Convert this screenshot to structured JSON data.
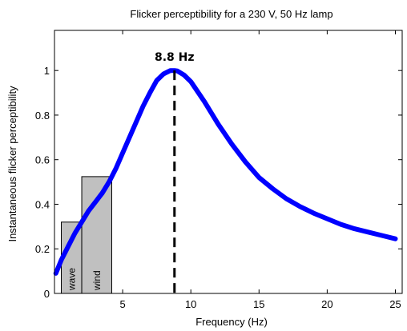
{
  "chart_data": {
    "type": "line",
    "title": "Flicker perceptibility for a 230 V, 50 Hz lamp",
    "xlabel": "Frequency (Hz)",
    "ylabel": "Instantaneous flicker perceptibility",
    "xlim": [
      0,
      25.5
    ],
    "ylim": [
      0,
      1.18
    ],
    "xticks": [
      5,
      10,
      15,
      20,
      25
    ],
    "xtick_labels": [
      "5",
      "10",
      "15",
      "20",
      "25"
    ],
    "yticks": [
      0,
      0.2,
      0.4,
      0.6,
      0.8,
      1
    ],
    "ytick_labels": [
      "0",
      "0.2",
      "0.4",
      "0.6",
      "0.8",
      "1"
    ],
    "grid": false,
    "series": [
      {
        "color": "#0000ff",
        "x": [
          0.1,
          0.5,
          1,
          1.5,
          2,
          2.5,
          3,
          3.5,
          4,
          4.5,
          5,
          5.5,
          6,
          6.5,
          7,
          7.5,
          8,
          8.5,
          8.8,
          9,
          9.5,
          10,
          11,
          12,
          13,
          14,
          15,
          16,
          17,
          18,
          19,
          20,
          21,
          22,
          23,
          24,
          25
        ],
        "y": [
          0.09,
          0.15,
          0.21,
          0.27,
          0.32,
          0.37,
          0.41,
          0.45,
          0.5,
          0.56,
          0.63,
          0.7,
          0.77,
          0.84,
          0.9,
          0.955,
          0.985,
          1.0,
          1.0,
          0.998,
          0.98,
          0.95,
          0.86,
          0.76,
          0.67,
          0.59,
          0.52,
          0.47,
          0.425,
          0.39,
          0.36,
          0.335,
          0.31,
          0.29,
          0.275,
          0.26,
          0.245
        ]
      }
    ],
    "regions": [
      {
        "label": "wave",
        "x0": 0.5,
        "x1": 2.0,
        "color": "#c0c0c0"
      },
      {
        "label": "wind",
        "x0": 2.0,
        "x1": 4.2,
        "color": "#c0c0c0"
      }
    ],
    "annotations": [
      {
        "label": "8.8 Hz",
        "x": 8.8
      }
    ]
  }
}
